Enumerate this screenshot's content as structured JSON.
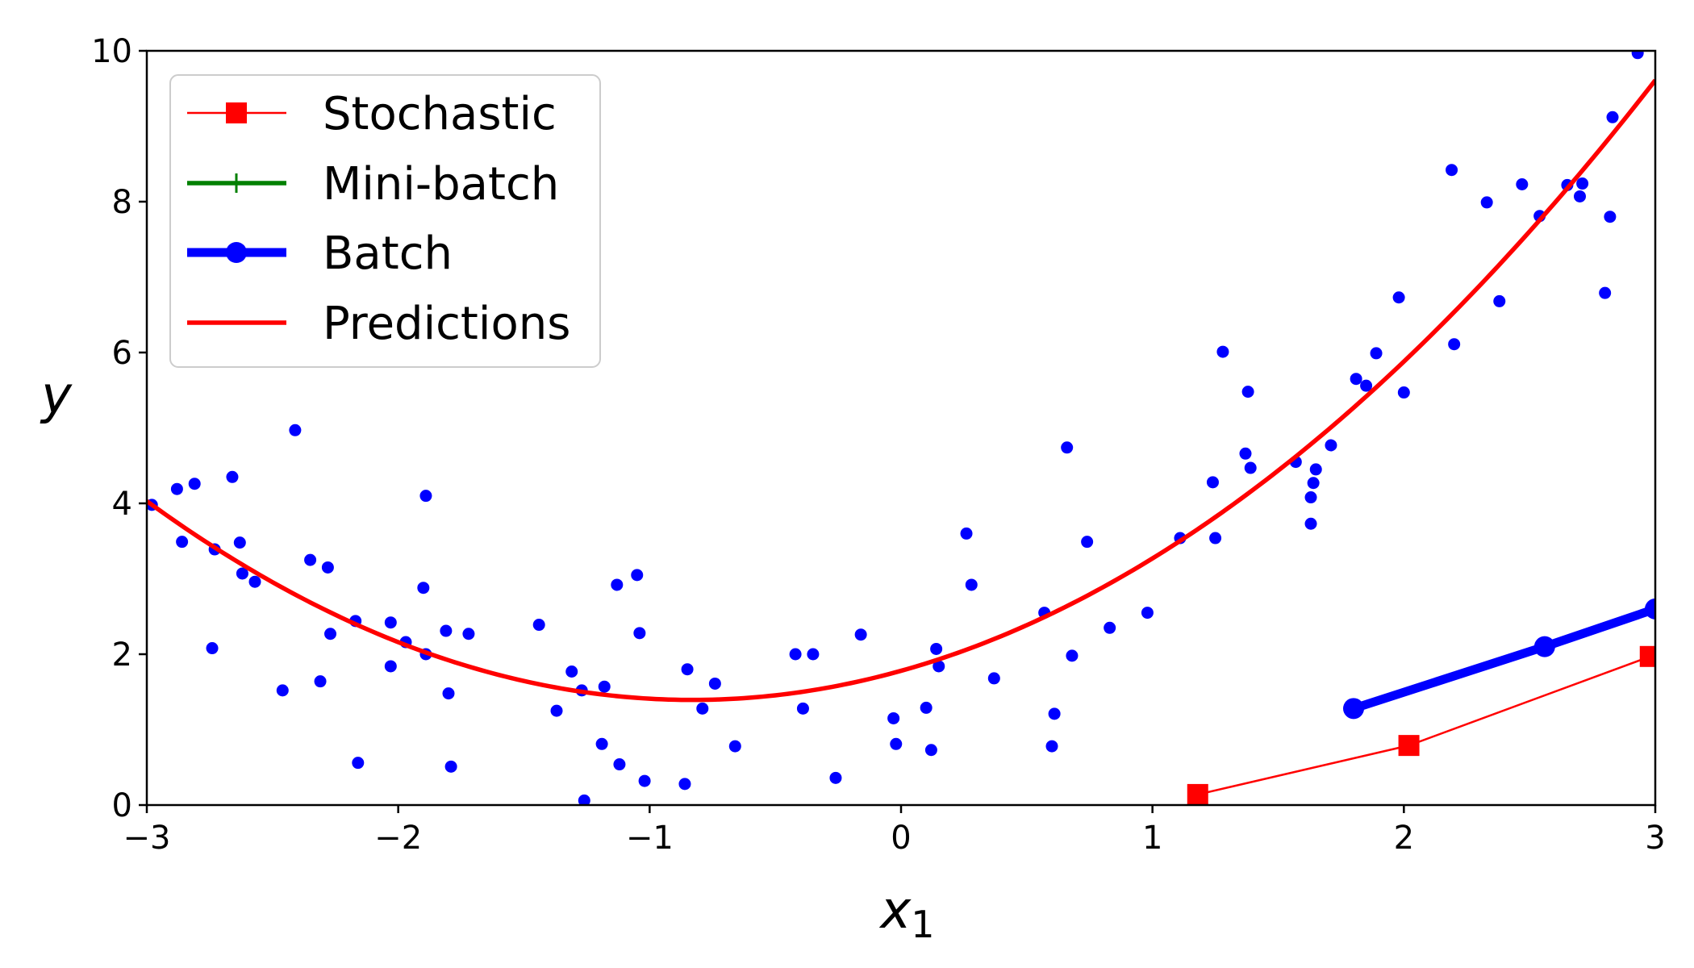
{
  "chart_data": {
    "type": "scatter",
    "xlabel": "x",
    "xlabel_subscript": "1",
    "ylabel": "y",
    "xlim": [
      -3,
      3
    ],
    "ylim": [
      0,
      10
    ],
    "x_ticks": [
      -3,
      -2,
      -1,
      0,
      1,
      2,
      3
    ],
    "x_tick_labels": [
      "−3",
      "−2",
      "−1",
      "0",
      "1",
      "2",
      "3"
    ],
    "y_ticks": [
      0,
      2,
      4,
      6,
      8,
      10
    ],
    "y_tick_labels": [
      "0",
      "2",
      "4",
      "6",
      "8",
      "10"
    ],
    "grid": false,
    "legend_position": "top-left",
    "legend": [
      {
        "name": "Stochastic",
        "color": "#ff0000",
        "marker": "square",
        "line": "thin"
      },
      {
        "name": "Mini-batch",
        "color": "#008000",
        "marker": "plus",
        "line": "medium"
      },
      {
        "name": "Batch",
        "color": "#0000ff",
        "marker": "circle",
        "line": "thick"
      },
      {
        "name": "Predictions",
        "color": "#ff0000",
        "marker": "none",
        "line": "medium"
      }
    ],
    "points": {
      "color": "#0000ff",
      "x": [
        -2.98,
        -2.88,
        -2.86,
        -2.81,
        -2.74,
        -2.73,
        -2.66,
        -2.63,
        -2.62,
        -2.57,
        -2.46,
        -2.41,
        -2.35,
        -2.31,
        -2.28,
        -2.27,
        -2.16,
        -2.17,
        -2.03,
        -2.03,
        -1.97,
        -1.89,
        -1.9,
        -1.89,
        -1.81,
        -1.8,
        -1.79,
        -1.72,
        -1.44,
        -1.37,
        -1.31,
        -1.26,
        -1.27,
        -1.18,
        -1.19,
        -1.13,
        -1.12,
        -1.05,
        -1.04,
        -1.02,
        -0.86,
        -0.85,
        -0.79,
        -0.74,
        -0.66,
        -0.42,
        -0.39,
        -0.35,
        -0.26,
        -0.16,
        -0.03,
        -0.02,
        0.1,
        0.12,
        0.14,
        0.15,
        0.26,
        0.28,
        0.37,
        0.57,
        0.6,
        0.61,
        0.66,
        0.68,
        0.74,
        0.83,
        0.98,
        1.11,
        1.24,
        1.25,
        1.28,
        1.37,
        1.38,
        1.39,
        1.57,
        1.63,
        1.64,
        1.63,
        1.65,
        1.71,
        1.81,
        1.85,
        1.89,
        1.98,
        2.0,
        2.19,
        2.2,
        2.33,
        2.38,
        2.47,
        2.54,
        2.65,
        2.7,
        2.71,
        2.8,
        2.82,
        2.83,
        2.93
      ],
      "y": [
        3.98,
        4.19,
        3.49,
        4.26,
        2.08,
        3.39,
        4.35,
        3.48,
        3.07,
        2.96,
        1.52,
        4.97,
        3.25,
        1.64,
        3.15,
        2.27,
        0.56,
        2.44,
        1.84,
        2.42,
        2.16,
        2.0,
        2.88,
        4.1,
        2.31,
        1.48,
        0.51,
        2.27,
        2.39,
        1.25,
        1.77,
        0.06,
        1.52,
        1.57,
        0.81,
        2.92,
        0.54,
        3.05,
        2.28,
        0.32,
        0.28,
        1.8,
        1.28,
        1.61,
        0.78,
        2.0,
        1.28,
        2.0,
        0.36,
        2.26,
        1.15,
        0.81,
        1.29,
        0.73,
        2.07,
        1.84,
        3.6,
        2.92,
        1.68,
        2.55,
        0.78,
        1.21,
        4.74,
        1.98,
        3.49,
        2.35,
        2.55,
        3.54,
        4.28,
        3.54,
        6.01,
        4.66,
        5.48,
        4.47,
        4.55,
        4.08,
        4.27,
        3.73,
        4.45,
        4.77,
        5.65,
        5.56,
        5.99,
        6.73,
        5.47,
        8.42,
        6.11,
        7.99,
        6.68,
        8.23,
        7.81,
        8.22,
        8.07,
        8.24,
        6.79,
        7.8,
        9.12,
        9.97
      ]
    },
    "series": [
      {
        "name": "Stochastic",
        "color": "#ff0000",
        "x": [
          1.18,
          2.02,
          2.98
        ],
        "y": [
          0.14,
          0.79,
          1.97
        ]
      },
      {
        "name": "Batch",
        "color": "#0000ff",
        "x": [
          1.8,
          2.56,
          3.0
        ],
        "y": [
          1.28,
          2.1,
          2.6
        ]
      }
    ],
    "predictions": {
      "name": "Predictions",
      "color": "#ff0000",
      "coefficients": {
        "a": 0.56,
        "b": 0.93,
        "c": 1.78
      }
    }
  }
}
